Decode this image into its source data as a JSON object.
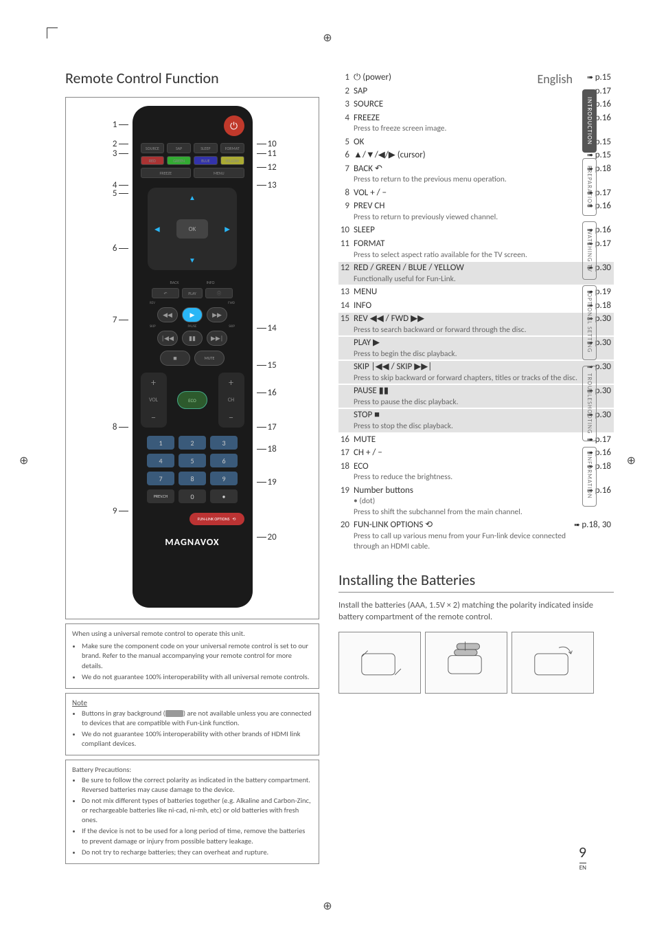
{
  "language": "English",
  "page_number": "9",
  "page_lang_code": "EN",
  "main_title": "Remote Control Function",
  "brand": "MAGNAVOX",
  "side_tabs": [
    {
      "label": "INTRODUCTION",
      "active": true
    },
    {
      "label": "PREPARATION",
      "active": false
    },
    {
      "label": "WATCHING TV",
      "active": false
    },
    {
      "label": "OPTIONAL SETTING",
      "active": false
    },
    {
      "label": "TROUBLESHOOTING",
      "active": false
    },
    {
      "label": "INFORMATION",
      "active": false
    }
  ],
  "remote_left_callouts": [
    "1",
    "2",
    "3",
    "4",
    "5",
    "6",
    "7",
    "8",
    "9"
  ],
  "remote_right_callouts": [
    "10",
    "11",
    "12",
    "13",
    "14",
    "15",
    "16",
    "17",
    "18",
    "19",
    "20"
  ],
  "remote_buttons": {
    "top_row": [
      "SOURCE",
      "SAP",
      "SLEEP",
      "FORMAT"
    ],
    "color_row": [
      "RED",
      "GREEN",
      "BLUE",
      "YELLOW"
    ],
    "freeze_menu": [
      "FREEZE",
      "MENU"
    ],
    "ok": "OK",
    "back_info": [
      "BACK",
      "INFO"
    ],
    "play": "PLAY",
    "transport_labels": [
      "REV",
      "FWD"
    ],
    "skip_labels": [
      "SKIP",
      "PAUSE",
      "SKIP"
    ],
    "stop_mute": [
      "STOP",
      "MUTE"
    ],
    "vol": "VOL",
    "ch": "CH",
    "eco": "ECO",
    "numbers": [
      "1",
      "2",
      "3",
      "4",
      "5",
      "6",
      "7",
      "8",
      "9",
      "PREV.CH",
      "0",
      "•"
    ],
    "funlink": "FUN-LINK OPTIONS"
  },
  "universal_box": {
    "lead": "When using a universal remote control to operate this unit.",
    "bullets": [
      "Make sure the component code on your universal remote control is set to our brand. Refer to the manual accompanying your remote control for more details.",
      "We do not guarantee 100% interoperability with all universal remote controls."
    ]
  },
  "note_box": {
    "header": "Note",
    "bullets_pre": "Buttons in gray background (",
    "bullets_post": ") are not available unless you are connected to devices that are compatible with Fun-Link function.",
    "bullet2": "We do not guarantee 100% interoperability with other brands of HDMI link compliant devices."
  },
  "battery_box": {
    "header": "Battery Precautions:",
    "bullets": [
      "Be sure to follow the correct polarity as indicated in the battery compartment. Reversed batteries may cause damage to the device.",
      "Do not mix different types of batteries together (e.g. Alkaline and Carbon-Zinc, or rechargeable batteries like ni-cad, ni-mh, etc) or old batteries with fresh ones.",
      "If the device is not to be used for a long period of time, remove the batteries to prevent damage or injury from possible battery leakage.",
      "Do not try to recharge batteries; they can overheat and rupture."
    ]
  },
  "ref_list": [
    {
      "n": "1",
      "label": "⏻ (power)",
      "page": "p.15"
    },
    {
      "n": "2",
      "label": "SAP",
      "page": "p.17"
    },
    {
      "n": "3",
      "label": "SOURCE",
      "page": "p.16"
    },
    {
      "n": "4",
      "label": "FREEZE",
      "page": "p.16",
      "desc": "Press to freeze screen image."
    },
    {
      "n": "5",
      "label": "OK",
      "page": "p.15"
    },
    {
      "n": "6",
      "label": "▲/▼/◀/▶ (cursor)",
      "page": "p.15"
    },
    {
      "n": "7",
      "label": "BACK ↶",
      "page": "p.18",
      "desc": "Press to return to the previous menu operation."
    },
    {
      "n": "8",
      "label": "VOL + / −",
      "page": "p.17"
    },
    {
      "n": "9",
      "label": "PREV CH",
      "page": "p.16",
      "desc": "Press to return to previously viewed channel."
    },
    {
      "n": "10",
      "label": "SLEEP",
      "page": "p.16"
    },
    {
      "n": "11",
      "label": "FORMAT",
      "page": "p.17",
      "desc": "Press to select aspect ratio available for the TV screen."
    },
    {
      "n": "12",
      "label": "RED / GREEN / BLUE / YELLOW",
      "page": "p.30",
      "desc": "Functionally useful for Fun-Link.",
      "shaded": true
    },
    {
      "n": "13",
      "label": "MENU",
      "page": "p.19"
    },
    {
      "n": "14",
      "label": "INFO",
      "page": "p.18"
    },
    {
      "n": "15",
      "shaded": true,
      "subs": [
        {
          "label": "REV ◀◀ / FWD ▶▶",
          "page": "p.30",
          "desc": "Press to search backward or forward through the disc."
        },
        {
          "label": "PLAY ▶",
          "page": "p.30",
          "desc": "Press to begin the disc playback."
        },
        {
          "label": "SKIP |◀◀ / SKIP ▶▶|",
          "page": "p.30",
          "desc": "Press to skip backward or forward chapters, titles or tracks of the disc."
        },
        {
          "label": "PAUSE ▮▮",
          "page": "p.30",
          "desc": "Press to pause the disc playback."
        },
        {
          "label": "STOP ■",
          "page": "p.30",
          "desc": "Press to stop the disc playback."
        }
      ]
    },
    {
      "n": "16",
      "label": "MUTE",
      "page": "p.17"
    },
    {
      "n": "17",
      "label": "CH + / −",
      "page": "p.16"
    },
    {
      "n": "18",
      "label": "ECO",
      "page": "p.18",
      "desc": "Press to reduce the brightness."
    },
    {
      "n": "19",
      "label": "Number buttons",
      "page": "p.16",
      "desc_label": "• (dot)",
      "desc": "Press to shift the subchannel from the main channel."
    },
    {
      "n": "20",
      "label": "FUN-LINK OPTIONS ⟲",
      "page": "p.18, 30",
      "desc": "Press to call up various menu from your Fun-link device connected through an HDMI cable."
    }
  ],
  "batteries": {
    "title": "Installing the Batteries",
    "text": "Install the batteries (AAA, 1.5V × 2) matching the polarity indicated inside battery compartment of the remote control."
  }
}
